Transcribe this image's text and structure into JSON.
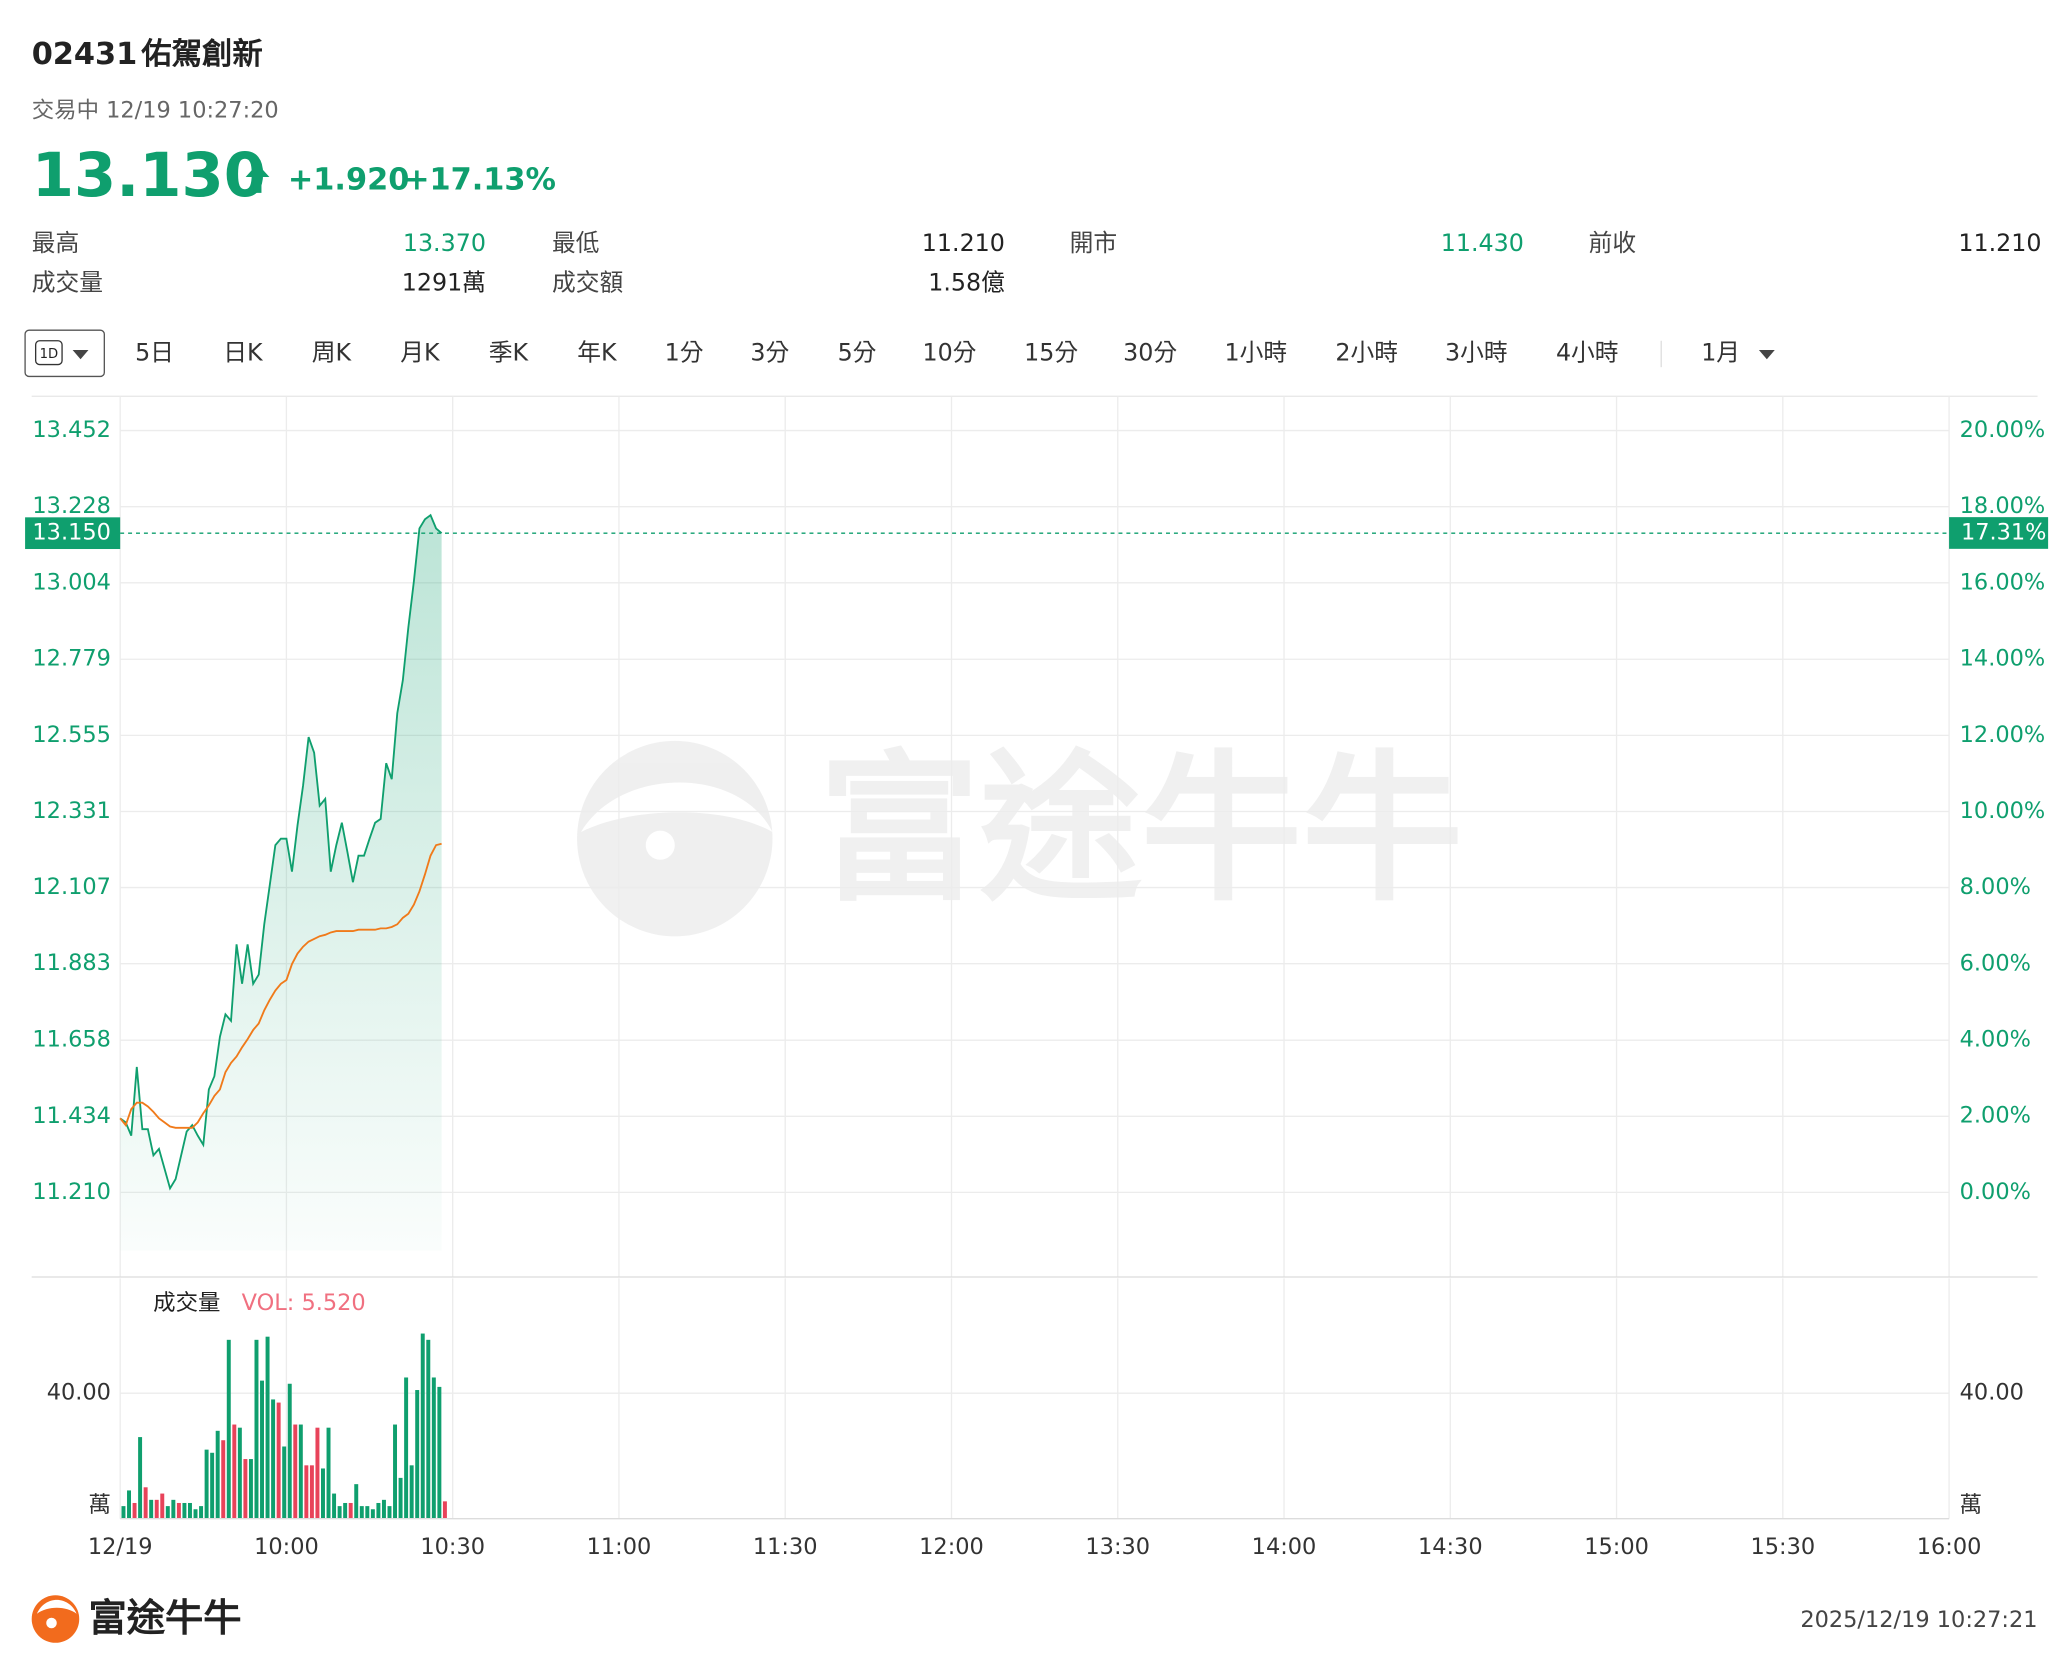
{
  "header": {
    "code": "02431",
    "name": "佑駕創新",
    "status": "交易中 12/19 10:27:20",
    "price": "13.130",
    "change": "+1.920",
    "change_pct": "+17.13%"
  },
  "stats": [
    {
      "label": "最高",
      "value": "13.370"
    },
    {
      "label": "最低",
      "value": "11.210"
    },
    {
      "label": "開市",
      "value": "11.430"
    },
    {
      "label": "前收",
      "value": "11.210"
    },
    {
      "label": "成交量",
      "value": "1291萬"
    },
    {
      "label": "成交額",
      "value": "1.58億"
    }
  ],
  "tabs": [
    "1D",
    "5日",
    "日K",
    "周K",
    "月K",
    "季K",
    "年K",
    "1分",
    "3分",
    "5分",
    "10分",
    "15分",
    "30分",
    "1小時",
    "2小時",
    "3小時",
    "4小時",
    "1月"
  ],
  "watermark": "富途牛牛",
  "footer": {
    "brand": "富途牛牛",
    "timestamp": "2025/12/19 10:27:21"
  },
  "chart_data": {
    "type": "line",
    "xticks": [
      "12/19",
      "10:00",
      "10:30",
      "11:00",
      "11:30",
      "12:00",
      "13:30",
      "14:00",
      "14:30",
      "15:00",
      "15:30",
      "16:00"
    ],
    "ylim": [
      10.961,
      13.553
    ],
    "yticks": [
      {
        "value": 11.21,
        "label": "11.210"
      },
      {
        "value": 11.434,
        "label": "11.434"
      },
      {
        "value": 11.658,
        "label": "11.658"
      },
      {
        "value": 11.883,
        "label": "11.883"
      },
      {
        "value": 12.107,
        "label": "12.107"
      },
      {
        "value": 12.331,
        "label": "12.331"
      },
      {
        "value": 12.555,
        "label": "12.555"
      },
      {
        "value": 12.779,
        "label": "12.779"
      },
      {
        "value": 13.004,
        "label": "13.004"
      },
      {
        "value": 13.228,
        "label": "13.228"
      },
      {
        "value": 13.452,
        "label": "13.452"
      }
    ],
    "y2lim": [
      -2.221,
      20.9
    ],
    "y2ticks": [
      {
        "value": 0,
        "label": "0.00%"
      },
      {
        "value": 2,
        "label": "2.00%"
      },
      {
        "value": 4,
        "label": "4.00%"
      },
      {
        "value": 6,
        "label": "6.00%"
      },
      {
        "value": 8,
        "label": "8.00%"
      },
      {
        "value": 10,
        "label": "10.00%"
      },
      {
        "value": 12,
        "label": "12.00%"
      },
      {
        "value": 14,
        "label": "14.00%"
      },
      {
        "value": 16,
        "label": "16.00%"
      },
      {
        "value": 18,
        "label": "18.00%"
      },
      {
        "value": 20,
        "label": "20.00%"
      }
    ],
    "grid": true,
    "series": [
      {
        "color": "#0f9f6e",
        "values": [
          11.428,
          11.416,
          11.377,
          11.579,
          11.396,
          11.396,
          11.319,
          11.338,
          11.28,
          11.222,
          11.249,
          11.319,
          11.389,
          11.408,
          11.377,
          11.35,
          11.513,
          11.552,
          11.668,
          11.734,
          11.715,
          11.94,
          11.824,
          11.94,
          11.824,
          11.851,
          11.999,
          12.115,
          12.232,
          12.251,
          12.251,
          12.154,
          12.29,
          12.407,
          12.55,
          12.504,
          12.348,
          12.368,
          12.154,
          12.232,
          12.298,
          12.212,
          12.123,
          12.201,
          12.201,
          12.251,
          12.298,
          12.309,
          12.473,
          12.426,
          12.62,
          12.717,
          12.873,
          13.009,
          13.164,
          13.191,
          13.203,
          13.164,
          13.15
        ]
      },
      {
        "color": "#f07a1a",
        "values": [
          11.428,
          11.408,
          11.455,
          11.474,
          11.474,
          11.463,
          11.447,
          11.428,
          11.416,
          11.404,
          11.4,
          11.4,
          11.4,
          11.4,
          11.416,
          11.443,
          11.466,
          11.494,
          11.513,
          11.564,
          11.591,
          11.61,
          11.637,
          11.661,
          11.688,
          11.707,
          11.746,
          11.777,
          11.804,
          11.824,
          11.835,
          11.882,
          11.913,
          11.933,
          11.948,
          11.956,
          11.964,
          11.968,
          11.975,
          11.979,
          11.979,
          11.979,
          11.979,
          11.983,
          11.983,
          11.983,
          11.983,
          11.987,
          11.987,
          11.991,
          11.999,
          12.018,
          12.03,
          12.057,
          12.096,
          12.146,
          12.201,
          12.232,
          12.236
        ]
      }
    ],
    "last_price": {
      "value": 13.15,
      "label": "13.150",
      "pct": 17.31,
      "pct_label": "17.31%",
      "color": "#0f9f6e"
    },
    "volume": {
      "title": "成交量",
      "readout": "VOL: 5.520",
      "ylim": [
        0,
        76.6
      ],
      "yticks": [
        {
          "value": 0,
          "label": "萬"
        },
        {
          "value": 40,
          "label": "40.00"
        }
      ],
      "values": [
        4,
        9,
        5,
        26,
        10,
        6,
        6,
        8,
        4,
        6,
        5,
        5,
        5,
        3,
        4,
        22,
        21,
        28,
        25,
        57,
        30,
        29,
        19,
        19,
        57,
        44,
        58,
        38,
        37,
        23,
        43,
        30,
        30,
        17,
        17,
        29,
        16,
        29,
        8,
        4,
        5,
        5,
        11,
        4,
        4,
        3,
        5,
        6,
        4,
        30,
        13,
        45,
        17,
        41,
        59,
        57,
        45,
        42,
        5.52
      ],
      "colors": [
        "#0f9f6e",
        "#0f9f6e",
        "#e8435a",
        "#0f9f6e",
        "#e8435a",
        "#0f9f6e",
        "#e8435a",
        "#e8435a",
        "#0f9f6e",
        "#0f9f6e",
        "#e8435a",
        "#0f9f6e",
        "#0f9f6e",
        "#0f9f6e",
        "#0f9f6e",
        "#0f9f6e",
        "#0f9f6e",
        "#0f9f6e",
        "#e8435a",
        "#0f9f6e",
        "#e8435a",
        "#0f9f6e",
        "#e8435a",
        "#0f9f6e",
        "#0f9f6e",
        "#0f9f6e",
        "#0f9f6e",
        "#0f9f6e",
        "#e8435a",
        "#0f9f6e",
        "#0f9f6e",
        "#e8435a",
        "#0f9f6e",
        "#e8435a",
        "#e8435a",
        "#e8435a",
        "#0f9f6e",
        "#0f9f6e",
        "#0f9f6e",
        "#0f9f6e",
        "#0f9f6e",
        "#e8435a",
        "#0f9f6e",
        "#0f9f6e",
        "#0f9f6e",
        "#0f9f6e",
        "#0f9f6e",
        "#0f9f6e",
        "#0f9f6e",
        "#0f9f6e",
        "#0f9f6e",
        "#0f9f6e",
        "#0f9f6e",
        "#0f9f6e",
        "#0f9f6e",
        "#0f9f6e",
        "#0f9f6e",
        "#0f9f6e",
        "#e8435a"
      ]
    }
  }
}
